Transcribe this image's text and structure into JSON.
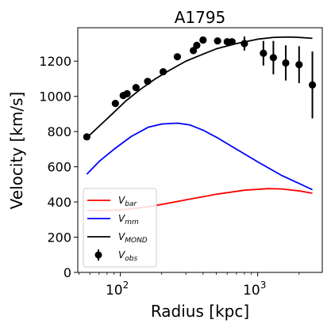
{
  "chart_data": {
    "type": "line",
    "title": "A1795",
    "xlabel": "Radius [kpc]",
    "ylabel": "Velocity [km/s]",
    "xscale": "log",
    "xlim": [
      49,
      2950
    ],
    "ylim": [
      0,
      1390
    ],
    "yticks": [
      0,
      200,
      400,
      600,
      800,
      1000,
      1200
    ],
    "xticks": [
      {
        "value": 100,
        "base": "10",
        "exp": "2"
      },
      {
        "value": 1000,
        "base": "10",
        "exp": "3"
      }
    ],
    "legend_position": "lower-left",
    "grid": false,
    "series": [
      {
        "name": "V",
        "sub": "bar",
        "color": "#ff0000",
        "kind": "line",
        "x": [
          57,
          80,
          100,
          150,
          200,
          300,
          500,
          800,
          1200,
          1500,
          2000,
          2500
        ],
        "y": [
          352,
          352,
          355,
          370,
          386,
          412,
          444,
          467,
          476,
          474,
          463,
          450
        ]
      },
      {
        "name": "V",
        "sub": "mm",
        "color": "#0000ff",
        "kind": "line",
        "x": [
          57,
          70,
          90,
          120,
          160,
          200,
          260,
          320,
          400,
          500,
          700,
          1000,
          1500,
          2000,
          2500
        ],
        "y": [
          558,
          630,
          700,
          772,
          825,
          843,
          848,
          838,
          808,
          768,
          700,
          628,
          550,
          505,
          470
        ]
      },
      {
        "name": "V",
        "sub": "MOND",
        "color": "#000000",
        "kind": "line",
        "x": [
          57,
          70,
          90,
          110,
          140,
          180,
          230,
          300,
          400,
          500,
          700,
          1000,
          1300,
          1700,
          2000,
          2500
        ],
        "y": [
          765,
          830,
          910,
          975,
          1040,
          1100,
          1150,
          1200,
          1240,
          1270,
          1300,
          1325,
          1335,
          1337,
          1335,
          1330
        ]
      },
      {
        "name": "V",
        "sub": "obs",
        "color": "#000000",
        "kind": "errorbar",
        "x": [
          57,
          92,
          105,
          112,
          130,
          158,
          205,
          260,
          340,
          360,
          400,
          510,
          600,
          650,
          800,
          1100,
          1300,
          1600,
          2000,
          2500
        ],
        "y": [
          770,
          960,
          1005,
          1015,
          1050,
          1085,
          1140,
          1225,
          1260,
          1290,
          1320,
          1315,
          1310,
          1310,
          1300,
          1245,
          1220,
          1190,
          1180,
          1065
        ],
        "yerr": [
          10,
          10,
          10,
          10,
          10,
          10,
          10,
          10,
          10,
          10,
          10,
          10,
          10,
          15,
          40,
          70,
          95,
          100,
          105,
          190
        ]
      }
    ]
  }
}
